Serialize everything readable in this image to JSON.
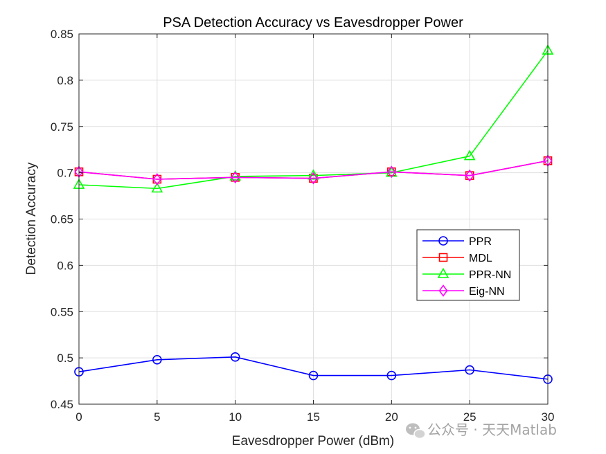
{
  "chart_data": {
    "type": "line",
    "title": "PSA Detection Accuracy vs Eavesdropper Power",
    "xlabel": "Eavesdropper Power (dBm)",
    "ylabel": "Detection Accuracy",
    "x": [
      0,
      5,
      10,
      15,
      20,
      25,
      30
    ],
    "xlim": [
      0,
      30
    ],
    "ylim": [
      0.45,
      0.85
    ],
    "xticks": [
      "0",
      "5",
      "10",
      "15",
      "20",
      "25",
      "30"
    ],
    "yticks": [
      "0.45",
      "0.5",
      "0.55",
      "0.6",
      "0.65",
      "0.7",
      "0.75",
      "0.8",
      "0.85"
    ],
    "grid": true,
    "legend_position": "center-right",
    "series": [
      {
        "name": "PPR",
        "color": "#0000ff",
        "marker": "circle",
        "values": [
          0.485,
          0.498,
          0.501,
          0.481,
          0.481,
          0.487,
          0.477
        ]
      },
      {
        "name": "MDL",
        "color": "#ff0000",
        "marker": "square",
        "values": [
          0.701,
          0.693,
          0.695,
          0.694,
          0.701,
          0.697,
          0.713
        ]
      },
      {
        "name": "PPR-NN",
        "color": "#00ff00",
        "marker": "triangle",
        "values": [
          0.687,
          0.683,
          0.696,
          0.697,
          0.7,
          0.718,
          0.832
        ]
      },
      {
        "name": "Eig-NN",
        "color": "#ff00ff",
        "marker": "diamond",
        "values": [
          0.701,
          0.693,
          0.695,
          0.694,
          0.701,
          0.697,
          0.713
        ]
      }
    ]
  },
  "watermark": {
    "icon": "wechat-icon",
    "text": "公众号 · 天天Matlab"
  }
}
